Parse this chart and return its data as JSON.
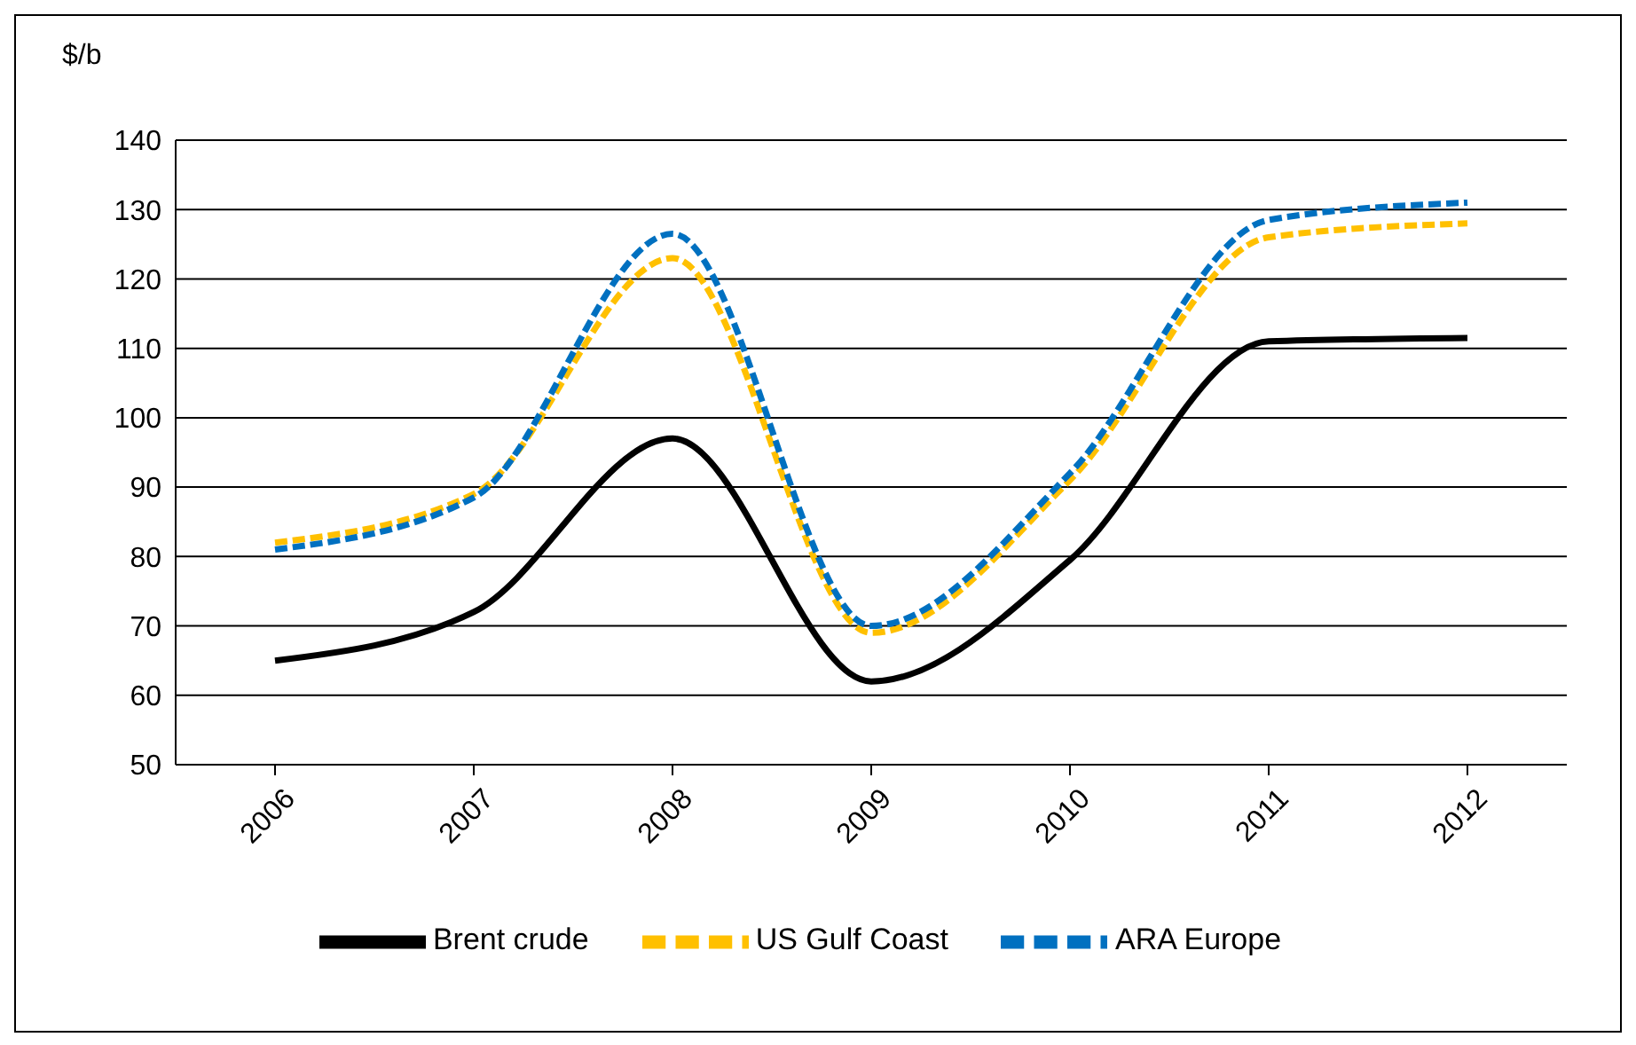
{
  "chart_data": {
    "type": "line",
    "ylabel": "$/b",
    "categories": [
      "2006",
      "2007",
      "2008",
      "2009",
      "2010",
      "2011",
      "2012"
    ],
    "series": [
      {
        "name": "Brent crude",
        "color": "#000000",
        "line_style": "solid",
        "values": [
          65,
          72,
          97,
          62,
          79.5,
          111,
          111.5
        ]
      },
      {
        "name": "US Gulf Coast",
        "color": "#ffc000",
        "line_style": "dashed",
        "values": [
          82,
          89,
          123,
          69,
          91,
          126,
          128
        ]
      },
      {
        "name": "ARA Europe",
        "color": "#0070c0",
        "line_style": "dashed",
        "values": [
          81,
          88.5,
          126.5,
          70,
          92,
          128.5,
          131
        ]
      }
    ],
    "ylim": [
      50,
      140
    ],
    "yticks": [
      50,
      60,
      70,
      80,
      90,
      100,
      110,
      120,
      130,
      140
    ],
    "grid": "y",
    "legend": "bottom",
    "marker": "none"
  }
}
